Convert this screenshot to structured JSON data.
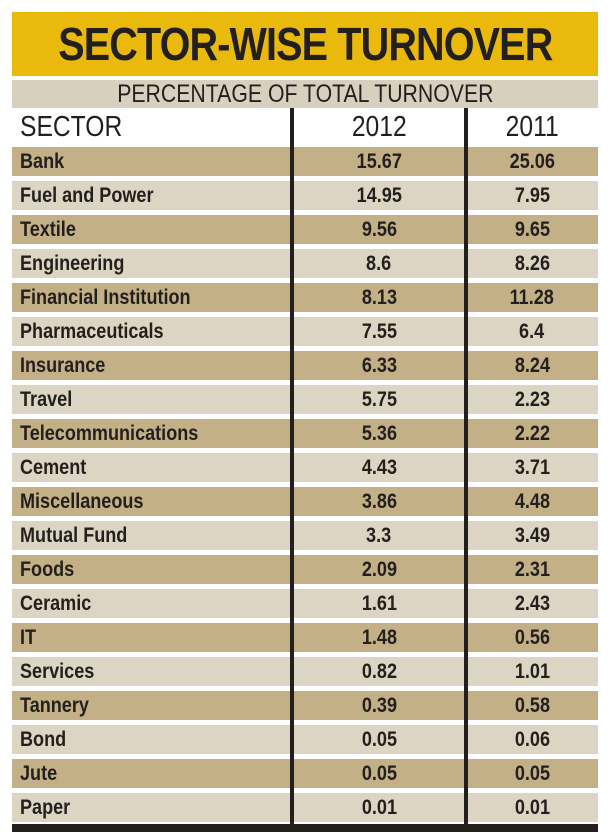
{
  "title": "SECTOR-WISE TURNOVER",
  "subtitle": "PERCENTAGE OF TOTAL TURNOVER",
  "headers": [
    "SECTOR",
    "2012",
    "2011"
  ],
  "rows": [
    [
      "Bank",
      "15.67",
      "25.06"
    ],
    [
      "Fuel and Power",
      "14.95",
      "7.95"
    ],
    [
      "Textile",
      "9.56",
      "9.65"
    ],
    [
      "Engineering",
      "8.6",
      "8.26"
    ],
    [
      "Financial Institution",
      "8.13",
      "11.28"
    ],
    [
      "Pharmaceuticals",
      "7.55",
      "6.4"
    ],
    [
      "Insurance",
      "6.33",
      "8.24"
    ],
    [
      "Travel",
      "5.75",
      "2.23"
    ],
    [
      "Telecommunications",
      "5.36",
      "2.22"
    ],
    [
      "Cement",
      "4.43",
      "3.71"
    ],
    [
      "Miscellaneous",
      "3.86",
      "4.48"
    ],
    [
      "Mutual Fund",
      "3.3",
      "3.49"
    ],
    [
      "Foods",
      "2.09",
      "2.31"
    ],
    [
      "Ceramic",
      "1.61",
      "2.43"
    ],
    [
      "IT",
      "1.48",
      "0.56"
    ],
    [
      "Services",
      "0.82",
      "1.01"
    ],
    [
      "Tannery",
      "0.39",
      "0.58"
    ],
    [
      "Bond",
      "0.05",
      "0.06"
    ],
    [
      "Jute",
      "0.05",
      "0.05"
    ],
    [
      "Paper",
      "0.01",
      "0.01"
    ]
  ],
  "colors": {
    "title_bg": "#e9b90c",
    "row_dark": "#c4b087",
    "row_light": "#ddd5c4"
  }
}
